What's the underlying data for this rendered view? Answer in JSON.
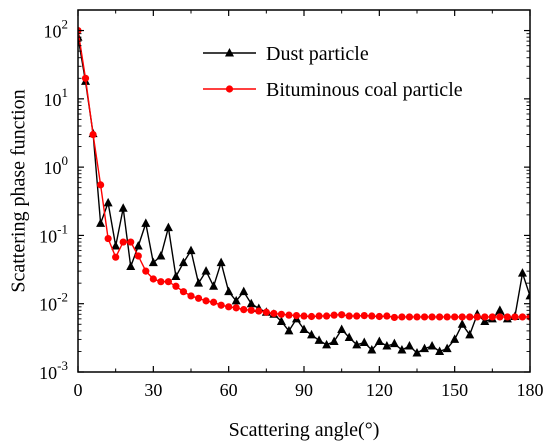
{
  "chart_data": {
    "type": "line",
    "xlabel": "Scattering angle(°)",
    "ylabel": "Scattering phase function",
    "xlim": [
      0,
      180
    ],
    "ylim": [
      0.001,
      200
    ],
    "yscale": "log",
    "x_ticks": [
      0,
      30,
      60,
      90,
      120,
      150,
      180
    ],
    "y_ticks": [
      {
        "value": 0.001,
        "base": "10",
        "exp": "-3"
      },
      {
        "value": 0.01,
        "base": "10",
        "exp": "-2"
      },
      {
        "value": 0.1,
        "base": "10",
        "exp": "-1"
      },
      {
        "value": 1,
        "base": "10",
        "exp": "0"
      },
      {
        "value": 10,
        "base": "10",
        "exp": "1"
      },
      {
        "value": 100,
        "base": "10",
        "exp": "2"
      }
    ],
    "legend_position": "top-right",
    "series": [
      {
        "name": "Dust particle",
        "color": "#000000",
        "marker": "triangle",
        "x": [
          0,
          3,
          6,
          9,
          12,
          15,
          18,
          21,
          24,
          27,
          30,
          33,
          36,
          39,
          42,
          45,
          48,
          51,
          54,
          57,
          60,
          63,
          66,
          69,
          72,
          75,
          78,
          81,
          84,
          87,
          90,
          93,
          96,
          99,
          102,
          105,
          108,
          111,
          114,
          117,
          120,
          123,
          126,
          129,
          132,
          135,
          138,
          141,
          144,
          147,
          150,
          153,
          156,
          159,
          162,
          165,
          168,
          171,
          174,
          177,
          180
        ],
        "y": [
          80,
          18,
          3.1,
          0.15,
          0.3,
          0.07,
          0.25,
          0.035,
          0.07,
          0.15,
          0.04,
          0.05,
          0.13,
          0.025,
          0.04,
          0.06,
          0.02,
          0.03,
          0.018,
          0.04,
          0.015,
          0.011,
          0.015,
          0.01,
          0.0085,
          0.0075,
          0.007,
          0.0055,
          0.004,
          0.006,
          0.0042,
          0.0035,
          0.0029,
          0.0025,
          0.0028,
          0.0042,
          0.0032,
          0.0025,
          0.0027,
          0.0021,
          0.0028,
          0.0024,
          0.0026,
          0.0021,
          0.0024,
          0.0019,
          0.0022,
          0.0024,
          0.002,
          0.0022,
          0.003,
          0.005,
          0.0035,
          0.007,
          0.0055,
          0.006,
          0.008,
          0.006,
          0.0065,
          0.028,
          0.013
        ]
      },
      {
        "name": "Bituminous coal particle",
        "color": "#ff0000",
        "marker": "circle",
        "x": [
          0,
          3,
          6,
          9,
          12,
          15,
          18,
          21,
          24,
          27,
          30,
          33,
          36,
          39,
          42,
          45,
          48,
          51,
          54,
          57,
          60,
          63,
          66,
          69,
          72,
          75,
          78,
          81,
          84,
          87,
          90,
          93,
          96,
          99,
          102,
          105,
          108,
          111,
          114,
          117,
          120,
          123,
          126,
          129,
          132,
          135,
          138,
          141,
          144,
          147,
          150,
          153,
          156,
          159,
          162,
          165,
          168,
          171,
          174,
          177,
          180
        ],
        "y": [
          100,
          20,
          3.0,
          0.55,
          0.09,
          0.048,
          0.08,
          0.08,
          0.05,
          0.03,
          0.023,
          0.021,
          0.021,
          0.018,
          0.015,
          0.013,
          0.012,
          0.011,
          0.0105,
          0.0095,
          0.009,
          0.0087,
          0.0082,
          0.008,
          0.0078,
          0.0075,
          0.0072,
          0.007,
          0.0068,
          0.0067,
          0.0066,
          0.0065,
          0.0066,
          0.0066,
          0.0068,
          0.0069,
          0.0066,
          0.0066,
          0.0067,
          0.0066,
          0.0065,
          0.0066,
          0.0063,
          0.0064,
          0.0064,
          0.0064,
          0.0064,
          0.0064,
          0.0064,
          0.0064,
          0.0064,
          0.0064,
          0.0064,
          0.0064,
          0.0064,
          0.0064,
          0.0064,
          0.0064,
          0.0064,
          0.0064,
          0.0064
        ]
      }
    ]
  }
}
